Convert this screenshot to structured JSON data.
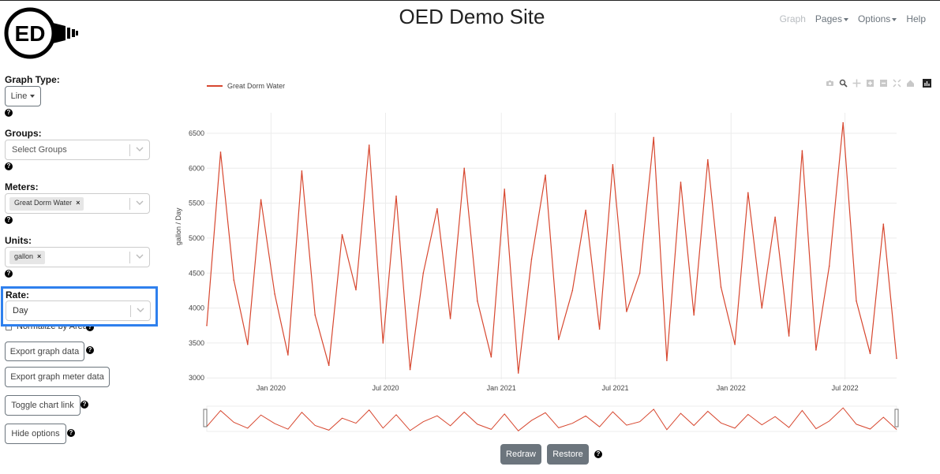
{
  "site": {
    "title": "OED Demo Site",
    "logo_text": "ED"
  },
  "nav": {
    "graph": "Graph",
    "pages": "Pages",
    "options": "Options",
    "help": "Help"
  },
  "sidebar": {
    "graph_type": {
      "label": "Graph Type:",
      "value": "Line"
    },
    "groups": {
      "label": "Groups:",
      "placeholder": "Select Groups"
    },
    "meters": {
      "label": "Meters:",
      "selected": [
        "Great Dorm Water"
      ]
    },
    "units": {
      "label": "Units:",
      "selected": [
        "gallon"
      ]
    },
    "rate": {
      "label": "Rate:",
      "value": "Day"
    },
    "normalize_label": "Normalize by Area",
    "export_graph_data": "Export graph data",
    "export_meter_data": "Export graph meter data",
    "toggle_chart_link": "Toggle chart link",
    "hide_options": "Hide options",
    "help_glyph": "?",
    "remove_glyph": "×"
  },
  "controls": {
    "redraw": "Redraw",
    "restore": "Restore"
  },
  "colors": {
    "series": "#d7472f",
    "highlight": "#2f80ed",
    "dark_button": "#6c757d"
  },
  "chart_data": {
    "type": "line",
    "legend": "Great Dorm Water",
    "ylabel": "gallon / Day",
    "ylim": [
      2980,
      6680
    ],
    "y_ticks": [
      3000,
      3500,
      4000,
      4500,
      5000,
      5500,
      6000,
      6500
    ],
    "x_range": [
      "2019-09-21",
      "2022-09-21"
    ],
    "x_ticks": [
      {
        "date": "2020-01-01",
        "label": "Jan 2020"
      },
      {
        "date": "2020-07-01",
        "label": "Jul 2020"
      },
      {
        "date": "2021-01-01",
        "label": "Jan 2021"
      },
      {
        "date": "2021-07-01",
        "label": "Jul 2021"
      },
      {
        "date": "2022-01-01",
        "label": "Jan 2022"
      },
      {
        "date": "2022-07-01",
        "label": "Jul 2022"
      }
    ],
    "grid": true,
    "series": [
      {
        "name": "Great Dorm Water",
        "x": [
          "2019-09-21",
          "2019-10-13",
          "2019-11-03",
          "2019-11-25",
          "2019-12-16",
          "2020-01-07",
          "2020-01-28",
          "2020-02-19",
          "2020-03-11",
          "2020-04-02",
          "2020-04-23",
          "2020-05-15",
          "2020-06-05",
          "2020-06-27",
          "2020-07-18",
          "2020-08-09",
          "2020-08-30",
          "2020-09-21",
          "2020-10-12",
          "2020-11-03",
          "2020-11-24",
          "2020-12-16",
          "2021-01-06",
          "2021-01-28",
          "2021-02-18",
          "2021-03-12",
          "2021-04-02",
          "2021-04-24",
          "2021-05-15",
          "2021-06-06",
          "2021-06-27",
          "2021-07-19",
          "2021-08-09",
          "2021-08-31",
          "2021-09-21",
          "2021-10-13",
          "2021-11-03",
          "2021-11-25",
          "2021-12-16",
          "2022-01-07",
          "2022-01-28",
          "2022-02-19",
          "2022-03-12",
          "2022-04-03",
          "2022-04-24",
          "2022-05-16",
          "2022-06-06",
          "2022-06-28",
          "2022-07-19",
          "2022-08-10",
          "2022-08-31",
          "2022-09-21"
        ],
        "y": [
          3750,
          6230,
          4400,
          3480,
          5550,
          4200,
          3330,
          5960,
          3900,
          3180,
          5050,
          4260,
          6330,
          3500,
          5600,
          3120,
          4500,
          5420,
          3850,
          6000,
          4100,
          3300,
          5700,
          3070,
          4700,
          5900,
          3550,
          4250,
          5400,
          3700,
          6050,
          3950,
          4500,
          6440,
          3250,
          5800,
          3900,
          6120,
          4300,
          3480,
          5650,
          4000,
          5300,
          3600,
          6250,
          3400,
          4600,
          6650,
          4100,
          3350,
          5200,
          3280
        ]
      }
    ]
  }
}
